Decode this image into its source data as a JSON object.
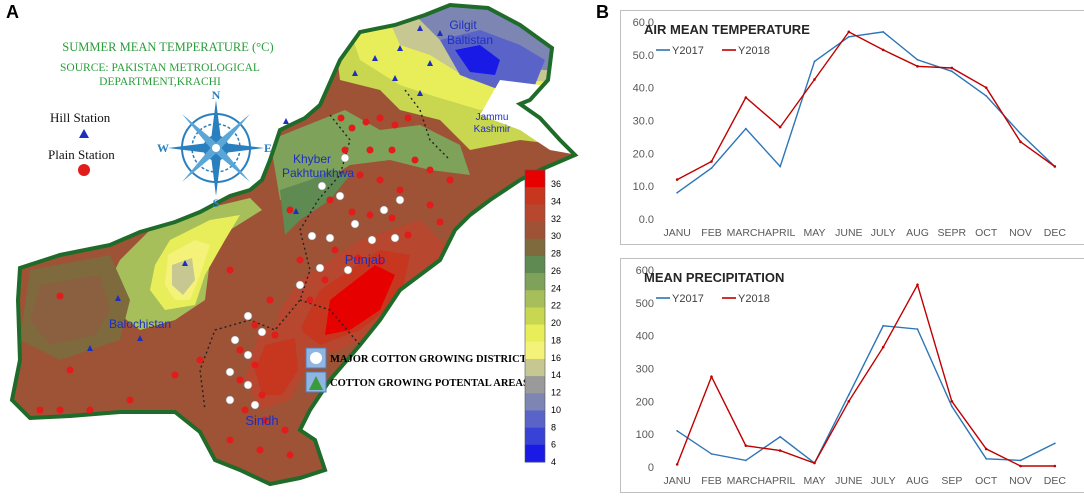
{
  "panels": {
    "a_label": "A",
    "b_label": "B"
  },
  "map": {
    "title": "SUMMER MEAN TEMPERATURE (°C)",
    "source_line1": "SOURCE: PAKISTAN METROLOGICAL",
    "source_line2": "DEPARTMENT,KRACHI",
    "legend_hill": "Hill Station",
    "legend_plain": "Plain Station",
    "compass": {
      "n": "N",
      "s": "S",
      "e": "E",
      "w": "W"
    },
    "regions": {
      "gilgit": "Gilgit",
      "baltistan": "Baltistan",
      "jammu": "Jammu",
      "kashmir": "Kashmir",
      "khyber": "Khyber",
      "pakhtunkhwa": "Pakhtunkhwa",
      "punjab": "Punjab",
      "balochistan": "Balochistan",
      "sindh": "Sindh"
    },
    "cotton_legend": {
      "major": "MAJOR COTTON GROWING DISTRICTS",
      "potential": "COTTON GROWING POTENTAL AREAS"
    },
    "scale": {
      "ticks": [
        "36",
        "34",
        "32",
        "30",
        "28",
        "26",
        "24",
        "22",
        "20",
        "18",
        "16",
        "14",
        "12",
        "10",
        "8",
        "6",
        "4"
      ],
      "colors": [
        "#e60000",
        "#c7361f",
        "#b7472f",
        "#9e5236",
        "#7e6a3d",
        "#5f8a52",
        "#7fa25a",
        "#a6bf5a",
        "#c8d650",
        "#e8ee5a",
        "#f5f27a",
        "#c7c791",
        "#9a9a9a",
        "#7d86b3",
        "#5a64c8",
        "#3842d6",
        "#1a1ae6"
      ]
    }
  },
  "chart_data": [
    {
      "type": "line",
      "title": "AIR MEAN TEMPERATURE",
      "categories": [
        "JANU",
        "FEB",
        "MARCH",
        "APRIL",
        "MAY",
        "JUNE",
        "JULY",
        "AUG",
        "SEPR",
        "OCT",
        "NOV",
        "DEC"
      ],
      "series": [
        {
          "name": "Y2017",
          "color": "#2e75b6",
          "values": [
            8.0,
            15.5,
            27.5,
            16.0,
            48.0,
            55.5,
            57.0,
            48.5,
            45.0,
            37.5,
            26.0,
            16.0
          ]
        },
        {
          "name": "Y2018",
          "color": "#c00000",
          "values": [
            12.0,
            17.5,
            37.0,
            28.0,
            42.5,
            57.0,
            51.5,
            46.5,
            46.0,
            40.0,
            23.5,
            16.0
          ]
        }
      ],
      "ylim": [
        0,
        60
      ],
      "yticks": [
        "0.0",
        "10.0",
        "20.0",
        "30.0",
        "40.0",
        "50.0",
        "60.0"
      ],
      "legend_position": "top-left"
    },
    {
      "type": "line",
      "title": "MEAN PRECIPITATION",
      "categories": [
        "JANU",
        "FEB",
        "MARCH",
        "APRIL",
        "MAY",
        "JUNE",
        "JULY",
        "AUG",
        "SEP",
        "OCT",
        "NOV",
        "DEC"
      ],
      "series": [
        {
          "name": "Y2017",
          "color": "#2e75b6",
          "values": [
            110,
            40,
            20,
            92,
            12,
            220,
            430,
            420,
            185,
            25,
            20,
            72
          ]
        },
        {
          "name": "Y2018",
          "color": "#c00000",
          "values": [
            8,
            275,
            65,
            50,
            12,
            200,
            365,
            555,
            200,
            55,
            3,
            3
          ]
        }
      ],
      "ylim": [
        0,
        600
      ],
      "yticks": [
        "0",
        "100",
        "200",
        "300",
        "400",
        "500",
        "600"
      ],
      "legend_position": "top-left"
    }
  ]
}
